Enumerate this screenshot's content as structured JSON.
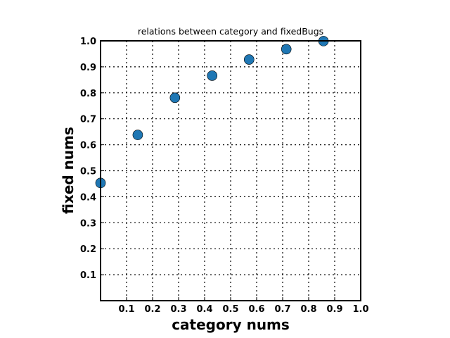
{
  "chart_data": {
    "type": "scatter",
    "title": "relations between category and fixedBugs",
    "xlabel": "category nums",
    "ylabel": "fixed nums",
    "xlim": [
      0.0,
      1.0
    ],
    "ylim": [
      0.0,
      1.0
    ],
    "xticks": [
      "0.1",
      "0.2",
      "0.3",
      "0.4",
      "0.5",
      "0.6",
      "0.7",
      "0.8",
      "0.9",
      "1.0"
    ],
    "yticks": [
      "0.1",
      "0.2",
      "0.3",
      "0.4",
      "0.5",
      "0.6",
      "0.7",
      "0.8",
      "0.9",
      "1.0"
    ],
    "grid": true,
    "marker_color": "#1f77b4",
    "series": [
      {
        "x": [
          0.0,
          0.143,
          0.286,
          0.429,
          0.571,
          0.714,
          0.857
        ],
        "y": [
          0.453,
          0.638,
          0.781,
          0.866,
          0.928,
          0.968,
          0.999
        ]
      }
    ]
  }
}
